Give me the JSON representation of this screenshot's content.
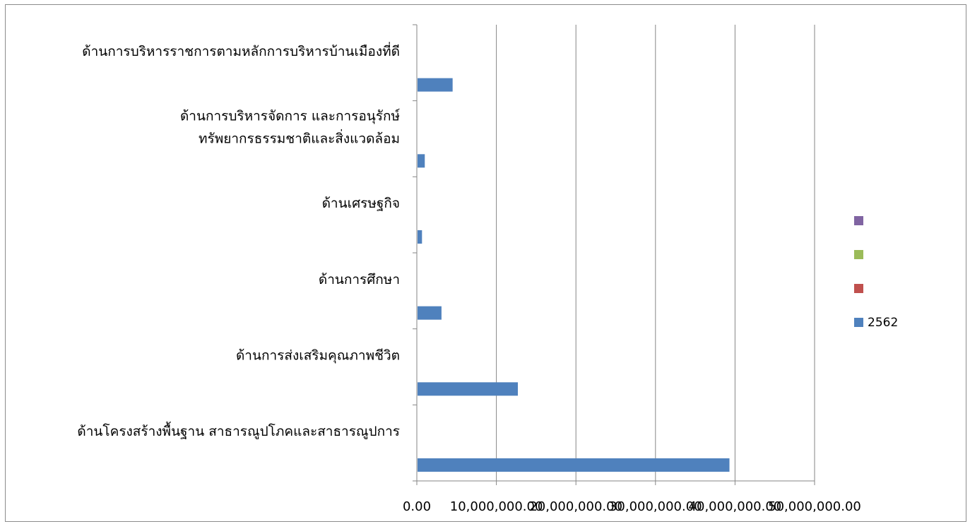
{
  "chart_data": {
    "type": "bar",
    "orientation": "horizontal",
    "title": "",
    "xlabel": "",
    "ylabel": "",
    "categories": [
      [
        "ด้านโครงสร้างพื้นฐาน สาธารณูปโภคและสาธารณูปการ"
      ],
      [
        "ด้านการส่งเสริมคุณภาพชีวิต"
      ],
      [
        "ด้านการศึกษา"
      ],
      [
        "ด้านเศรษฐกิจ"
      ],
      [
        "ด้านการบริหารจัดการ และการอนุรักษ์",
        "ทรัพยากรธรรมชาติและสิ่งแวดล้อม"
      ],
      [
        "ด้านการบริหารราชการตามหลักการบริหารบ้านเมืองที่ดี"
      ]
    ],
    "series": [
      {
        "name": "2562",
        "color": "#4f81bd",
        "values": [
          39300000,
          12700000,
          3100000,
          650000,
          1000000,
          4500000
        ]
      },
      {
        "name": "",
        "color": "#c0504d",
        "values": [
          0,
          0,
          0,
          0,
          0,
          0
        ]
      },
      {
        "name": "",
        "color": "#9bbb59",
        "values": [
          0,
          0,
          0,
          0,
          0,
          0
        ]
      },
      {
        "name": "",
        "color": "#8064a2",
        "values": [
          0,
          0,
          0,
          0,
          0,
          0
        ]
      }
    ],
    "xlim": [
      0,
      50000000
    ],
    "x_ticks": [
      0,
      10000000,
      20000000,
      30000000,
      40000000,
      50000000
    ],
    "x_tick_labels": [
      "0.00",
      "10,000,000.00",
      "20,000,000.00",
      "30,000,000.00",
      "40,000,000.00",
      "50,000,000.00"
    ],
    "grid": "vertical",
    "legend_position": "right"
  }
}
